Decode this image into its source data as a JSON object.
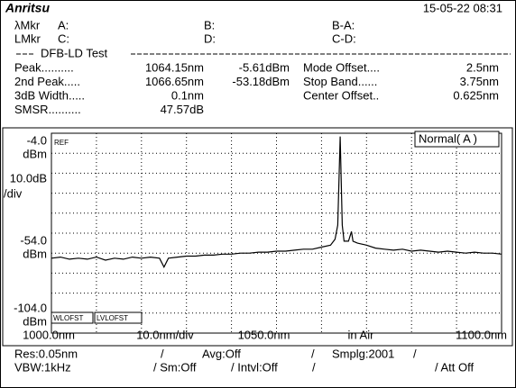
{
  "header": {
    "logo": "Anritsu",
    "datetime": "15-05-22 08:31"
  },
  "markers": [
    [
      "λMkr",
      "A:",
      "B:",
      "B-A:"
    ],
    [
      "LMkr",
      "C:",
      "D:",
      "C-D:"
    ]
  ],
  "dfb": {
    "title": "DFB-LD Test",
    "rows": [
      [
        "Peak..........",
        "1064.15nm",
        "-5.61dBm",
        "Mode Offset....",
        "2.5nm"
      ],
      [
        "2nd  Peak.....",
        "1066.65nm",
        "-53.18dBm",
        "Stop Band......",
        "3.75nm"
      ],
      [
        "3dB Width.....",
        "0.1nm",
        "",
        "Center Offset..",
        "0.625nm"
      ],
      [
        "SMSR..........",
        "47.57dB",
        "",
        "",
        ""
      ]
    ]
  },
  "chart_data": {
    "type": "line",
    "ref_label": "REF",
    "mode": "Normal( A )",
    "y_unit": "dBm",
    "y_scale": [
      "10.0dB",
      "/div"
    ],
    "x_scale": "10.0nm/div",
    "medium": "in Air",
    "offset_labels": [
      "WLOFST",
      "LVLOFST"
    ],
    "xlim": [
      1000,
      1100
    ],
    "ylim": [
      -104,
      -4
    ],
    "xticks": [
      {
        "value": 1000,
        "label": "1000.0nm"
      },
      {
        "value": 1050,
        "label": "1050.0nm"
      },
      {
        "value": 1100,
        "label": "1100.0nm"
      }
    ],
    "yticks": [
      {
        "value": -4,
        "label": "-4.0"
      },
      {
        "value": -54,
        "label": "-54.0"
      },
      {
        "value": -104,
        "label": "-104.0"
      }
    ],
    "xgrid": [
      1010,
      1020,
      1030,
      1040,
      1050,
      1060,
      1070,
      1080,
      1090
    ],
    "ygrid": [
      -14,
      -24,
      -34,
      -44,
      -54,
      -64,
      -74,
      -84,
      -94
    ],
    "color": "#000000",
    "x": [
      1000,
      1002,
      1004,
      1006,
      1008,
      1010,
      1012,
      1014,
      1016,
      1018,
      1020,
      1022,
      1024,
      1025,
      1026,
      1028,
      1030,
      1032,
      1034,
      1036,
      1038,
      1040,
      1042,
      1044,
      1046,
      1048,
      1050,
      1052,
      1054,
      1056,
      1058,
      1060,
      1062,
      1063,
      1063.6,
      1064.15,
      1064.6,
      1065,
      1066,
      1066.65,
      1067,
      1068,
      1070,
      1072,
      1074,
      1076,
      1078,
      1080,
      1082,
      1084,
      1086,
      1088,
      1090,
      1092,
      1094,
      1096,
      1098,
      1100
    ],
    "values": [
      -66.5,
      -66,
      -67,
      -66.5,
      -67,
      -66,
      -67.5,
      -66.5,
      -67,
      -66,
      -66.5,
      -66,
      -66.5,
      -71,
      -66.5,
      -66,
      -65.5,
      -65.5,
      -65,
      -65,
      -64.5,
      -64.5,
      -64,
      -64,
      -63.5,
      -63.5,
      -63,
      -63,
      -62.5,
      -62,
      -62,
      -61,
      -60,
      -57,
      -50,
      -5.61,
      -50,
      -58,
      -58,
      -53.18,
      -58,
      -59,
      -60,
      -61.5,
      -62,
      -62.5,
      -62,
      -63,
      -62.5,
      -63,
      -63.5,
      -63,
      -63.5,
      -64,
      -63.5,
      -64,
      -64,
      -64.5
    ]
  },
  "footer": [
    [
      "Res:0.05nm",
      "/",
      "Avg:Off",
      "/",
      "Smplg:2001",
      "/"
    ],
    [
      "VBW:1kHz",
      "/ Sm:Off",
      "/ Intvl:Off",
      "/",
      "/ Att Off"
    ]
  ]
}
